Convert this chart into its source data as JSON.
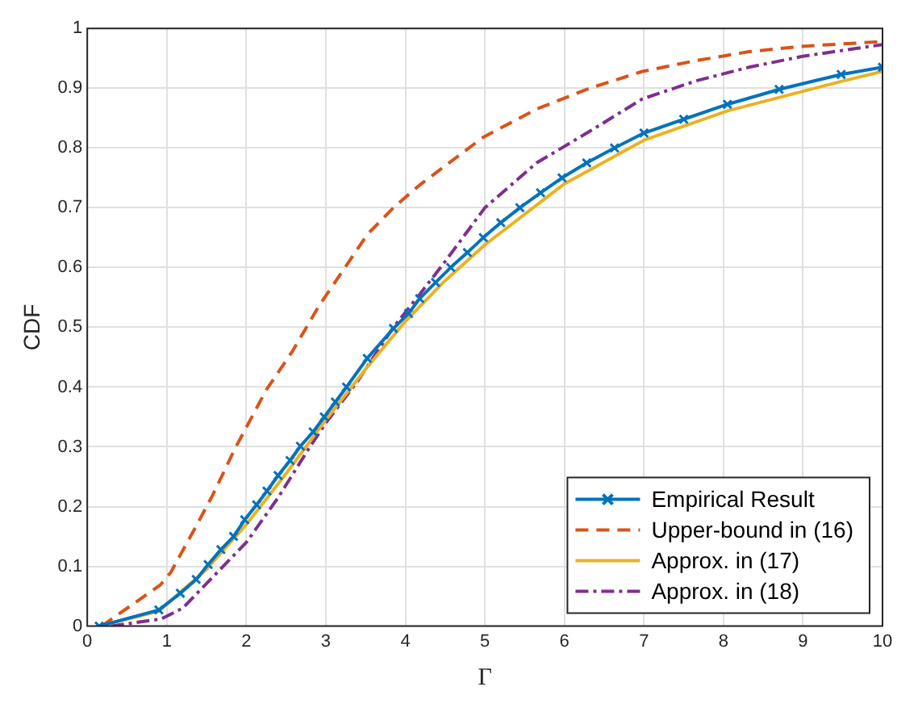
{
  "chart_data": {
    "type": "line",
    "xlabel": "Γ",
    "ylabel": "CDF",
    "xlim": [
      0,
      10
    ],
    "ylim": [
      0,
      1
    ],
    "xticks": [
      0,
      1,
      2,
      3,
      4,
      5,
      6,
      7,
      8,
      9,
      10
    ],
    "yticks": [
      0,
      0.1,
      0.2,
      0.3,
      0.4,
      0.5,
      0.6,
      0.7,
      0.8,
      0.9,
      1
    ],
    "grid": true,
    "legend": "bottom right",
    "series": [
      {
        "name": "Empirical Result",
        "color": "#0072bd",
        "marker": "cross",
        "line_style": "solid",
        "x": [
          0.15,
          0.9,
          1.17,
          1.37,
          1.52,
          1.68,
          1.84,
          1.98,
          2.13,
          2.26,
          2.4,
          2.55,
          2.68,
          2.84,
          2.98,
          3.12,
          3.26,
          3.52,
          3.85,
          4.04,
          4.18,
          4.38,
          4.57,
          4.78,
          4.98,
          5.2,
          5.44,
          5.7,
          5.97,
          6.28,
          6.63,
          7.0,
          7.5,
          8.05,
          8.7,
          9.48,
          10
        ],
        "values": [
          0,
          0.027,
          0.055,
          0.078,
          0.103,
          0.128,
          0.15,
          0.178,
          0.203,
          0.226,
          0.252,
          0.277,
          0.301,
          0.325,
          0.35,
          0.375,
          0.4,
          0.448,
          0.498,
          0.523,
          0.548,
          0.575,
          0.6,
          0.625,
          0.65,
          0.675,
          0.7,
          0.725,
          0.75,
          0.775,
          0.8,
          0.825,
          0.848,
          0.873,
          0.898,
          0.923,
          0.935
        ]
      },
      {
        "name": "Upper-bound in (16)",
        "color": "#d95319",
        "marker": "none",
        "line_style": "dashed",
        "x": [
          0.18,
          0.92,
          1.05,
          1.38,
          1.58,
          1.85,
          2.05,
          2.25,
          2.58,
          2.92,
          3.18,
          3.52,
          3.85,
          4.18,
          4.72,
          4.98,
          5.65,
          6.32,
          6.98,
          7.65,
          8.32,
          8.98,
          10
        ],
        "values": [
          0,
          0.069,
          0.09,
          0.17,
          0.22,
          0.295,
          0.345,
          0.395,
          0.46,
          0.537,
          0.588,
          0.655,
          0.7,
          0.738,
          0.792,
          0.818,
          0.865,
          0.9,
          0.928,
          0.946,
          0.961,
          0.97,
          0.978
        ]
      },
      {
        "name": "Approx. in (17)",
        "color": "#edb120",
        "marker": "none",
        "line_style": "solid",
        "x": [
          0.15,
          0.9,
          1.5,
          2.0,
          2.5,
          3.0,
          3.5,
          4.0,
          4.5,
          5.0,
          6.0,
          7.0,
          8.05,
          9.5,
          10
        ],
        "values": [
          0,
          0.025,
          0.095,
          0.17,
          0.255,
          0.345,
          0.43,
          0.51,
          0.578,
          0.638,
          0.74,
          0.813,
          0.862,
          0.912,
          0.928
        ]
      },
      {
        "name": "Approx. in (18)",
        "color": "#7e2f8e",
        "marker": "none",
        "line_style": "dashdot",
        "x": [
          0.3,
          0.93,
          1.2,
          1.6,
          2.0,
          2.4,
          2.8,
          3.0,
          3.4,
          3.85,
          4.18,
          4.5,
          5.0,
          5.65,
          6.32,
          6.98,
          7.65,
          8.32,
          8.98,
          10
        ],
        "values": [
          0,
          0.012,
          0.03,
          0.085,
          0.14,
          0.215,
          0.3,
          0.34,
          0.41,
          0.5,
          0.555,
          0.61,
          0.7,
          0.775,
          0.828,
          0.882,
          0.912,
          0.935,
          0.953,
          0.973
        ]
      }
    ]
  }
}
